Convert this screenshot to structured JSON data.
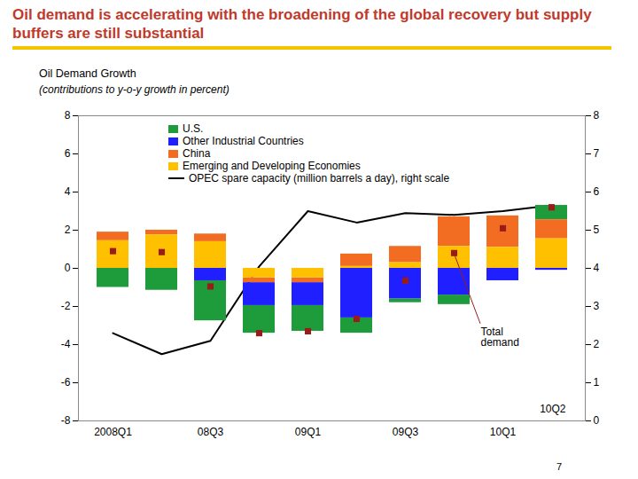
{
  "chart_data": {
    "type": "bar",
    "title": "Oil demand is accelerating with the broadening of the global recovery but supply buffers are still substantial",
    "subtitle": "Oil Demand Growth",
    "ylabel": "(contributions to y-o-y growth in percent)",
    "stacked": true,
    "legend": "top-left",
    "grid": false,
    "categories": [
      "2008Q1",
      null,
      "08Q3",
      null,
      "09Q1",
      null,
      "09Q3",
      null,
      "10Q1",
      null
    ],
    "series": [
      {
        "name": "U.S.",
        "type": "bar",
        "color": "#1e9b3a",
        "values": [
          -1.0,
          -1.15,
          -2.1,
          -1.45,
          -1.35,
          -0.8,
          -0.2,
          -0.5,
          0,
          0.75
        ]
      },
      {
        "name": "Other Industrial Countries",
        "type": "bar",
        "color": "#1f1fff",
        "values": [
          0,
          0,
          -0.65,
          -1.2,
          -1.2,
          -2.6,
          -1.6,
          -1.4,
          -0.65,
          -0.1
        ]
      },
      {
        "name": "China",
        "type": "bar",
        "color": "#f26c22",
        "values": [
          0.45,
          0.25,
          0.4,
          -0.25,
          -0.25,
          0.65,
          0.85,
          1.55,
          1.65,
          1.0
        ]
      },
      {
        "name": "Emerging and Developing Economies",
        "type": "bar",
        "color": "#ffc000",
        "values": [
          1.45,
          1.75,
          1.4,
          -0.5,
          -0.5,
          0.1,
          0.3,
          1.15,
          1.1,
          1.55
        ]
      },
      {
        "name": "OPEC spare capacity (million barrels a day), right scale",
        "type": "line",
        "axis": "y2",
        "color": "#000000",
        "line_style": "solid",
        "values": [
          2.3,
          1.75,
          2.1,
          4.05,
          5.5,
          5.2,
          5.45,
          5.4,
          5.5,
          5.65
        ]
      },
      {
        "name": "Total demand",
        "type": "scatter",
        "marker": "square",
        "color": "#9b1b1b",
        "values": [
          0.9,
          0.85,
          -0.95,
          -3.4,
          -3.3,
          -2.65,
          -0.65,
          0.8,
          2.1,
          3.2
        ]
      }
    ],
    "ylim": [
      -8,
      8
    ],
    "yticks": [
      -8,
      -6,
      -4,
      -2,
      0,
      2,
      4,
      6,
      8
    ],
    "y2lim": [
      0,
      8
    ],
    "y2ticks": [
      0,
      1,
      2,
      3,
      4,
      5,
      6,
      7,
      8
    ],
    "annotations": [
      "10Q2"
    ],
    "page_number": "7"
  }
}
